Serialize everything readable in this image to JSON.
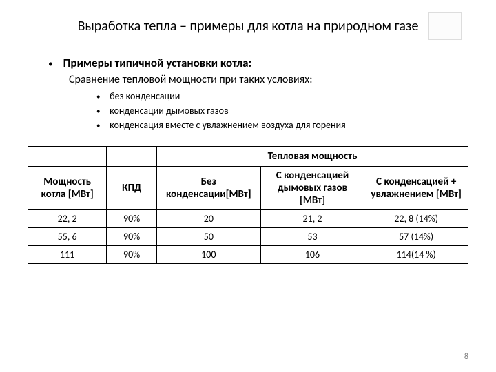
{
  "title": "Выработка тепла – примеры для котла на природном газе",
  "main_bullet": "Примеры типичной установки котла:",
  "subtitle": "Сравнение тепловой мощности при таких условиях:",
  "sub_bullets": [
    "без конденсации",
    "конденсации дымовых газов",
    "конденсация вместе с увлажнением воздуха для горения"
  ],
  "table": {
    "group_header": "Тепловая мощность",
    "columns": {
      "power": "Мощность котла [МВт]",
      "kpd": "КПД",
      "c1": "Без конденсации[МВт]",
      "c2": "С конденсацией дымовых газов [МВт]",
      "c3": "С конденсацией + увлажнением [МВт]"
    },
    "rows": [
      {
        "power": "22, 2",
        "kpd": "90%",
        "c1": "20",
        "c2": "21, 2",
        "c3": "22, 8 (14%)"
      },
      {
        "power": "55, 6",
        "kpd": "90%",
        "c1": "50",
        "c2": "53",
        "c3": "57 (14%)"
      },
      {
        "power": "111",
        "kpd": "90%",
        "c1": "100",
        "c2": "106",
        "c3": "114(14 %)"
      }
    ],
    "col_widths": {
      "power": 110,
      "kpd": 70,
      "c1": 145,
      "c2": 145,
      "c3": 145
    },
    "border_color": "#000000",
    "background": "#ffffff",
    "header_fontsize": 15,
    "cell_fontsize": 14,
    "font_weight_header": "bold"
  },
  "page_number": "8",
  "colors": {
    "text": "#000000",
    "background": "#ffffff",
    "page_num": "#808080",
    "logo_border": "#dddddd"
  },
  "fonts": {
    "title_size": 20,
    "main_bullet_size": 17,
    "subtitle_size": 16,
    "sub_bullet_size": 14
  }
}
